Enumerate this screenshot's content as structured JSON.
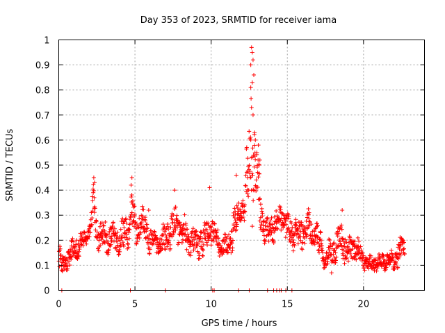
{
  "chart_data": {
    "type": "scatter",
    "title": "Day 353 of 2023, SRMTID for receiver iama",
    "xlabel": "GPS time / hours",
    "ylabel": "SRMTID / TECUs",
    "xlim": [
      0,
      24
    ],
    "ylim": [
      0,
      1
    ],
    "x_ticks": [
      0,
      5,
      10,
      15,
      20
    ],
    "x_tick_labels": [
      "0",
      "5",
      "10",
      "15",
      "20"
    ],
    "y_ticks": [
      0,
      0.1,
      0.2,
      0.3,
      0.4,
      0.5,
      0.6,
      0.7,
      0.8,
      0.9,
      1
    ],
    "y_tick_labels": [
      "0",
      "0.1",
      "0.2",
      "0.3",
      "0.4",
      "0.5",
      "0.6",
      "0.7",
      "0.8",
      "0.9",
      "1"
    ],
    "grid": true,
    "marker": "+",
    "color": "#ff0000",
    "x_data_end": 22.7,
    "series": [
      {
        "name": "SRMTID",
        "profile": [
          [
            0.0,
            0.12,
            0.05
          ],
          [
            0.3,
            0.1,
            0.05
          ],
          [
            0.6,
            0.12,
            0.05
          ],
          [
            1.0,
            0.16,
            0.05
          ],
          [
            1.5,
            0.19,
            0.04
          ],
          [
            1.9,
            0.22,
            0.03
          ],
          [
            2.1,
            0.25,
            0.05
          ],
          [
            2.3,
            0.37,
            0.06
          ],
          [
            2.5,
            0.22,
            0.05
          ],
          [
            3.0,
            0.22,
            0.06
          ],
          [
            3.5,
            0.2,
            0.06
          ],
          [
            4.0,
            0.2,
            0.06
          ],
          [
            4.5,
            0.24,
            0.07
          ],
          [
            4.8,
            0.33,
            0.07
          ],
          [
            5.0,
            0.24,
            0.06
          ],
          [
            5.5,
            0.27,
            0.06
          ],
          [
            6.0,
            0.2,
            0.05
          ],
          [
            6.5,
            0.2,
            0.05
          ],
          [
            7.0,
            0.2,
            0.06
          ],
          [
            7.5,
            0.25,
            0.07
          ],
          [
            8.0,
            0.26,
            0.06
          ],
          [
            8.5,
            0.2,
            0.06
          ],
          [
            9.0,
            0.18,
            0.06
          ],
          [
            9.5,
            0.2,
            0.06
          ],
          [
            10.0,
            0.25,
            0.06
          ],
          [
            10.5,
            0.18,
            0.05
          ],
          [
            11.0,
            0.17,
            0.05
          ],
          [
            11.5,
            0.25,
            0.07
          ],
          [
            11.8,
            0.31,
            0.05
          ],
          [
            12.2,
            0.33,
            0.05
          ],
          [
            12.6,
            0.6,
            0.3
          ],
          [
            12.9,
            0.47,
            0.14
          ],
          [
            13.2,
            0.35,
            0.1
          ],
          [
            13.6,
            0.22,
            0.05
          ],
          [
            14.0,
            0.25,
            0.06
          ],
          [
            14.6,
            0.3,
            0.05
          ],
          [
            15.0,
            0.25,
            0.06
          ],
          [
            15.5,
            0.22,
            0.06
          ],
          [
            16.0,
            0.24,
            0.07
          ],
          [
            16.5,
            0.25,
            0.06
          ],
          [
            17.0,
            0.2,
            0.06
          ],
          [
            17.5,
            0.12,
            0.04
          ],
          [
            18.0,
            0.16,
            0.06
          ],
          [
            18.5,
            0.2,
            0.06
          ],
          [
            19.0,
            0.15,
            0.05
          ],
          [
            19.5,
            0.18,
            0.05
          ],
          [
            20.0,
            0.12,
            0.03
          ],
          [
            20.5,
            0.1,
            0.03
          ],
          [
            21.0,
            0.11,
            0.03
          ],
          [
            21.5,
            0.12,
            0.03
          ],
          [
            22.0,
            0.12,
            0.04
          ],
          [
            22.4,
            0.16,
            0.05
          ],
          [
            22.7,
            0.18,
            0.05
          ]
        ],
        "peaks": [
          [
            12.65,
            0.97
          ],
          [
            12.7,
            0.95
          ],
          [
            12.75,
            0.92
          ],
          [
            12.6,
            0.9
          ],
          [
            12.8,
            0.86
          ],
          [
            12.7,
            0.83
          ],
          [
            12.6,
            0.81
          ],
          [
            12.65,
            0.73
          ],
          [
            12.75,
            0.7
          ],
          [
            12.85,
            0.63
          ],
          [
            12.6,
            0.6
          ],
          [
            12.9,
            0.6
          ],
          [
            13.1,
            0.58
          ],
          [
            13.2,
            0.52
          ],
          [
            13.15,
            0.5
          ],
          [
            13.0,
            0.55
          ],
          [
            2.3,
            0.45
          ],
          [
            2.35,
            0.43
          ],
          [
            4.8,
            0.45
          ],
          [
            4.75,
            0.42
          ],
          [
            9.9,
            0.41
          ],
          [
            7.6,
            0.4
          ],
          [
            11.65,
            0.46
          ],
          [
            12.4,
            0.45
          ],
          [
            5.9,
            0.32
          ],
          [
            17.9,
            0.07
          ],
          [
            18.6,
            0.32
          ]
        ],
        "zeros": [
          0.2,
          4.7,
          7.0,
          10.1,
          10.2,
          11.8,
          12.5,
          13.7,
          14.1,
          14.3,
          14.5,
          14.6,
          14.9,
          15.3
        ]
      }
    ]
  }
}
